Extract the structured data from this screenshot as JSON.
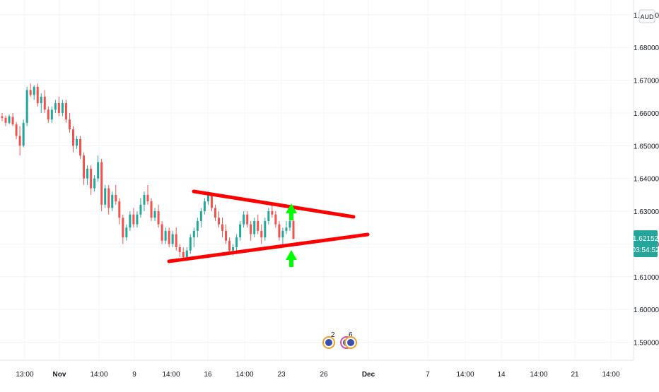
{
  "currency_label": "AUD",
  "price_axis": {
    "ticks": [
      "1.69000",
      "1.68000",
      "1.67000",
      "1.66000",
      "1.65000",
      "1.64000",
      "1.63000",
      "1.62000",
      "1.61000",
      "1.60000",
      "1.59000"
    ]
  },
  "time_axis": {
    "ticks": [
      "13:00",
      "Nov",
      "14:00",
      "9",
      "14:00",
      "16",
      "14:00",
      "23",
      "26",
      "Dec",
      "7",
      "14:00",
      "14",
      "14:00",
      "21",
      "14:00"
    ]
  },
  "last_price": {
    "value": "1.62152",
    "countdown": "03:54:52",
    "color": "#26a69a"
  },
  "events": [
    {
      "count": "2"
    },
    {
      "count": "6"
    }
  ],
  "colors": {
    "up": "#26a69a",
    "down": "#ef5350",
    "trendline": "#ff0000",
    "arrow": "#00ff00",
    "grid": "#f0f3fa",
    "axis_text": "#131722"
  },
  "chart_data": {
    "type": "candlestick",
    "y_range": [
      1.5845,
      1.6945
    ],
    "grid": true,
    "candles": [
      [
        1.659,
        1.66,
        1.6575,
        1.6585
      ],
      [
        1.6585,
        1.6592,
        1.656,
        1.657
      ],
      [
        1.657,
        1.6595,
        1.6565,
        1.659
      ],
      [
        1.6588,
        1.66,
        1.656,
        1.6565
      ],
      [
        1.6565,
        1.6572,
        1.652,
        1.653
      ],
      [
        1.653,
        1.656,
        1.647,
        1.65
      ],
      [
        1.65,
        1.658,
        1.6495,
        1.657
      ],
      [
        1.657,
        1.668,
        1.656,
        1.667
      ],
      [
        1.667,
        1.669,
        1.665,
        1.6655
      ],
      [
        1.6655,
        1.6685,
        1.664,
        1.668
      ],
      [
        1.668,
        1.669,
        1.662,
        1.663
      ],
      [
        1.663,
        1.666,
        1.66,
        1.665
      ],
      [
        1.665,
        1.667,
        1.66,
        1.661
      ],
      [
        1.661,
        1.662,
        1.657,
        1.658
      ],
      [
        1.658,
        1.662,
        1.657,
        1.661
      ],
      [
        1.661,
        1.664,
        1.66,
        1.663
      ],
      [
        1.663,
        1.665,
        1.659,
        1.66
      ],
      [
        1.66,
        1.664,
        1.659,
        1.663
      ],
      [
        1.663,
        1.664,
        1.657,
        1.658
      ],
      [
        1.658,
        1.66,
        1.654,
        1.655
      ],
      [
        1.655,
        1.656,
        1.648,
        1.65
      ],
      [
        1.65,
        1.653,
        1.649,
        1.652
      ],
      [
        1.652,
        1.653,
        1.646,
        1.647
      ],
      [
        1.647,
        1.648,
        1.638,
        1.64
      ],
      [
        1.64,
        1.644,
        1.638,
        1.643
      ],
      [
        1.643,
        1.644,
        1.635,
        1.637
      ],
      [
        1.637,
        1.641,
        1.636,
        1.64
      ],
      [
        1.64,
        1.647,
        1.639,
        1.645
      ],
      [
        1.645,
        1.646,
        1.63,
        1.632
      ],
      [
        1.632,
        1.638,
        1.631,
        1.637
      ],
      [
        1.637,
        1.638,
        1.629,
        1.631
      ],
      [
        1.631,
        1.636,
        1.63,
        1.635
      ],
      [
        1.635,
        1.638,
        1.632,
        1.633
      ],
      [
        1.633,
        1.634,
        1.626,
        1.628
      ],
      [
        1.628,
        1.629,
        1.62,
        1.622
      ],
      [
        1.622,
        1.626,
        1.621,
        1.625
      ],
      [
        1.625,
        1.63,
        1.624,
        1.629
      ],
      [
        1.629,
        1.631,
        1.625,
        1.626
      ],
      [
        1.626,
        1.63,
        1.625,
        1.629
      ],
      [
        1.629,
        1.634,
        1.628,
        1.632
      ],
      [
        1.632,
        1.636,
        1.63,
        1.635
      ],
      [
        1.635,
        1.638,
        1.632,
        1.633
      ],
      [
        1.633,
        1.634,
        1.627,
        1.628
      ],
      [
        1.628,
        1.631,
        1.627,
        1.63
      ],
      [
        1.63,
        1.632,
        1.625,
        1.626
      ],
      [
        1.626,
        1.627,
        1.62,
        1.621
      ],
      [
        1.621,
        1.625,
        1.62,
        1.624
      ],
      [
        1.624,
        1.625,
        1.619,
        1.62
      ],
      [
        1.62,
        1.624,
        1.619,
        1.623
      ],
      [
        1.623,
        1.625,
        1.618,
        1.619
      ],
      [
        1.619,
        1.62,
        1.616,
        1.6175
      ],
      [
        1.6175,
        1.619,
        1.615,
        1.616
      ],
      [
        1.616,
        1.619,
        1.6155,
        1.618
      ],
      [
        1.618,
        1.623,
        1.617,
        1.622
      ],
      [
        1.622,
        1.625,
        1.619,
        1.624
      ],
      [
        1.624,
        1.628,
        1.622,
        1.627
      ],
      [
        1.627,
        1.631,
        1.625,
        1.63
      ],
      [
        1.63,
        1.634,
        1.629,
        1.633
      ],
      [
        1.633,
        1.636,
        1.632,
        1.635
      ],
      [
        1.635,
        1.6355,
        1.63,
        1.631
      ],
      [
        1.631,
        1.632,
        1.627,
        1.628
      ],
      [
        1.628,
        1.63,
        1.625,
        1.626
      ],
      [
        1.626,
        1.628,
        1.622,
        1.624
      ],
      [
        1.624,
        1.626,
        1.62,
        1.621
      ],
      [
        1.621,
        1.622,
        1.617,
        1.618
      ],
      [
        1.618,
        1.62,
        1.6165,
        1.619
      ],
      [
        1.619,
        1.623,
        1.618,
        1.622
      ],
      [
        1.622,
        1.627,
        1.621,
        1.626
      ],
      [
        1.626,
        1.63,
        1.625,
        1.629
      ],
      [
        1.629,
        1.63,
        1.625,
        1.626
      ],
      [
        1.626,
        1.627,
        1.621,
        1.623
      ],
      [
        1.623,
        1.628,
        1.622,
        1.627
      ],
      [
        1.627,
        1.629,
        1.623,
        1.624
      ],
      [
        1.624,
        1.626,
        1.62,
        1.622
      ],
      [
        1.622,
        1.628,
        1.621,
        1.627
      ],
      [
        1.627,
        1.631,
        1.626,
        1.63
      ],
      [
        1.63,
        1.632,
        1.628,
        1.629
      ],
      [
        1.629,
        1.63,
        1.625,
        1.626
      ],
      [
        1.626,
        1.627,
        1.621,
        1.622
      ],
      [
        1.622,
        1.625,
        1.6195,
        1.624
      ],
      [
        1.624,
        1.627,
        1.623,
        1.625
      ],
      [
        1.625,
        1.628,
        1.624,
        1.627
      ],
      [
        1.627,
        1.6275,
        1.6215,
        1.6215
      ]
    ]
  }
}
